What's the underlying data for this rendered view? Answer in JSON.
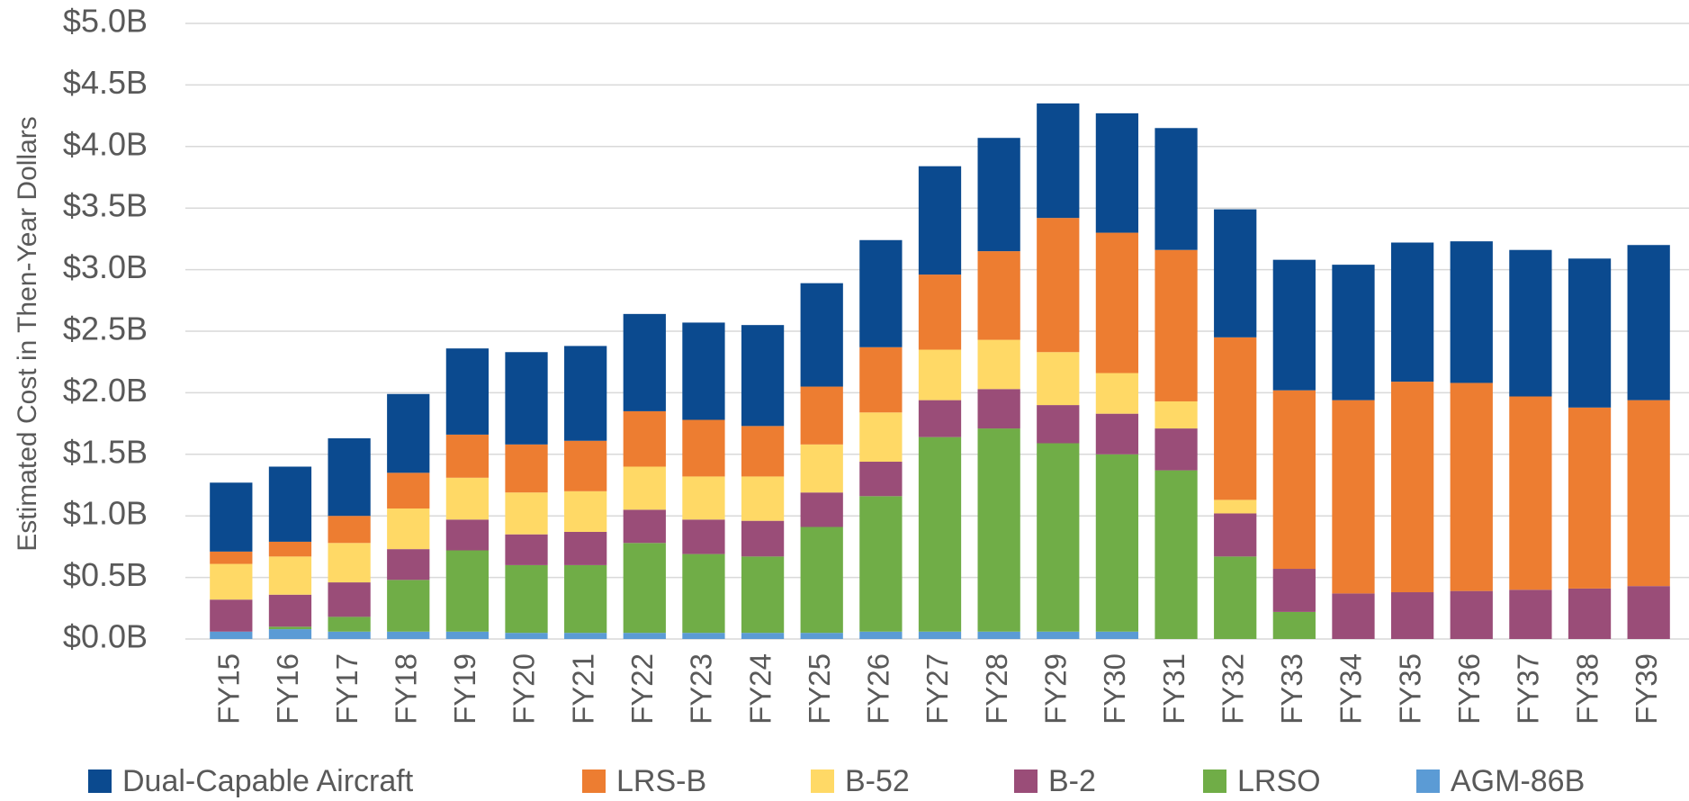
{
  "chart_data": {
    "type": "stacked_bar",
    "y_label": "Estimated Cost in Then-Year Dollars",
    "categories": [
      "FY15",
      "FY16",
      "FY17",
      "FY18",
      "FY19",
      "FY20",
      "FY21",
      "FY22",
      "FY23",
      "FY24",
      "FY25",
      "FY26",
      "FY27",
      "FY28",
      "FY29",
      "FY30",
      "FY31",
      "FY32",
      "FY33",
      "FY34",
      "FY35",
      "FY36",
      "FY37",
      "FY38",
      "FY39"
    ],
    "series": [
      {
        "name": "AGM-86B",
        "color": "#5b9bd5",
        "values": [
          0.06,
          0.08,
          0.06,
          0.06,
          0.06,
          0.05,
          0.05,
          0.05,
          0.05,
          0.05,
          0.05,
          0.06,
          0.06,
          0.06,
          0.06,
          0.06,
          0,
          0,
          0,
          0,
          0,
          0,
          0,
          0,
          0
        ]
      },
      {
        "name": "LRSO",
        "color": "#70ad47",
        "values": [
          0,
          0.02,
          0.12,
          0.42,
          0.66,
          0.55,
          0.55,
          0.73,
          0.64,
          0.62,
          0.86,
          1.1,
          1.58,
          1.65,
          1.53,
          1.44,
          1.37,
          0.67,
          0.22,
          0,
          0,
          0,
          0,
          0,
          0
        ]
      },
      {
        "name": "B-2",
        "color": "#9a4d78",
        "values": [
          0.26,
          0.26,
          0.28,
          0.25,
          0.25,
          0.25,
          0.27,
          0.27,
          0.28,
          0.29,
          0.28,
          0.28,
          0.3,
          0.32,
          0.31,
          0.33,
          0.34,
          0.35,
          0.35,
          0.37,
          0.38,
          0.39,
          0.4,
          0.41,
          0.43
        ]
      },
      {
        "name": "B-52",
        "color": "#ffd966",
        "values": [
          0.29,
          0.31,
          0.32,
          0.33,
          0.34,
          0.34,
          0.33,
          0.35,
          0.35,
          0.36,
          0.39,
          0.4,
          0.41,
          0.4,
          0.43,
          0.33,
          0.22,
          0.11,
          0,
          0,
          0,
          0,
          0,
          0,
          0
        ]
      },
      {
        "name": "LRS-B",
        "color": "#ed7d31",
        "values": [
          0.1,
          0.12,
          0.22,
          0.29,
          0.35,
          0.39,
          0.41,
          0.45,
          0.46,
          0.41,
          0.47,
          0.53,
          0.61,
          0.72,
          1.09,
          1.14,
          1.23,
          1.32,
          1.45,
          1.57,
          1.71,
          1.69,
          1.57,
          1.47,
          1.51
        ]
      },
      {
        "name": "Dual-Capable Aircraft",
        "color": "#0b4a8f",
        "values": [
          0.56,
          0.61,
          0.63,
          0.64,
          0.7,
          0.75,
          0.77,
          0.79,
          0.79,
          0.82,
          0.84,
          0.87,
          0.88,
          0.92,
          0.93,
          0.97,
          0.99,
          1.04,
          1.06,
          1.1,
          1.13,
          1.15,
          1.19,
          1.21,
          1.26
        ]
      }
    ],
    "ylim": [
      0,
      5
    ],
    "yticks": [
      {
        "value": 0,
        "label": "$0.0B"
      },
      {
        "value": 0.5,
        "label": "$0.5B"
      },
      {
        "value": 1,
        "label": "$1.0B"
      },
      {
        "value": 1.5,
        "label": "$1.5B"
      },
      {
        "value": 2,
        "label": "$2.0B"
      },
      {
        "value": 2.5,
        "label": "$2.5B"
      },
      {
        "value": 3,
        "label": "$3.0B"
      },
      {
        "value": 3.5,
        "label": "$3.5B"
      },
      {
        "value": 4,
        "label": "$4.0B"
      },
      {
        "value": 4.5,
        "label": "$4.5B"
      },
      {
        "value": 5,
        "label": "$5.0B"
      }
    ],
    "grid": true,
    "legend": "bottom"
  }
}
